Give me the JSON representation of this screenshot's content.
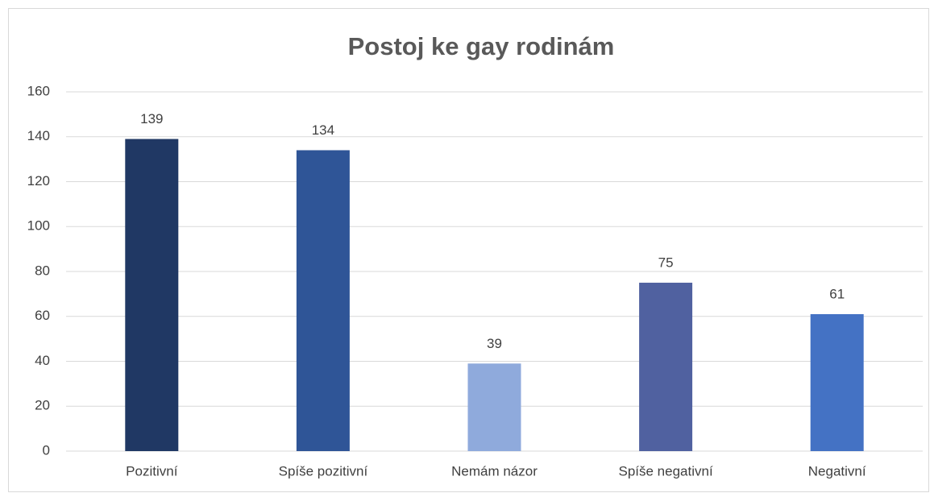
{
  "chart_data": {
    "type": "bar",
    "title": "Postoj ke gay rodinám",
    "categories": [
      "Pozitivní",
      "Spíše pozitivní",
      "Nemám názor",
      "Spíše negativní",
      "Negativní"
    ],
    "values": [
      139,
      134,
      39,
      75,
      61
    ],
    "colors": [
      "#203864",
      "#2f5597",
      "#8faadc",
      "#5061a0",
      "#4472c4"
    ],
    "ylim": [
      0,
      160
    ],
    "yticks": [
      0,
      20,
      40,
      60,
      80,
      100,
      120,
      140,
      160
    ],
    "grid": true
  }
}
